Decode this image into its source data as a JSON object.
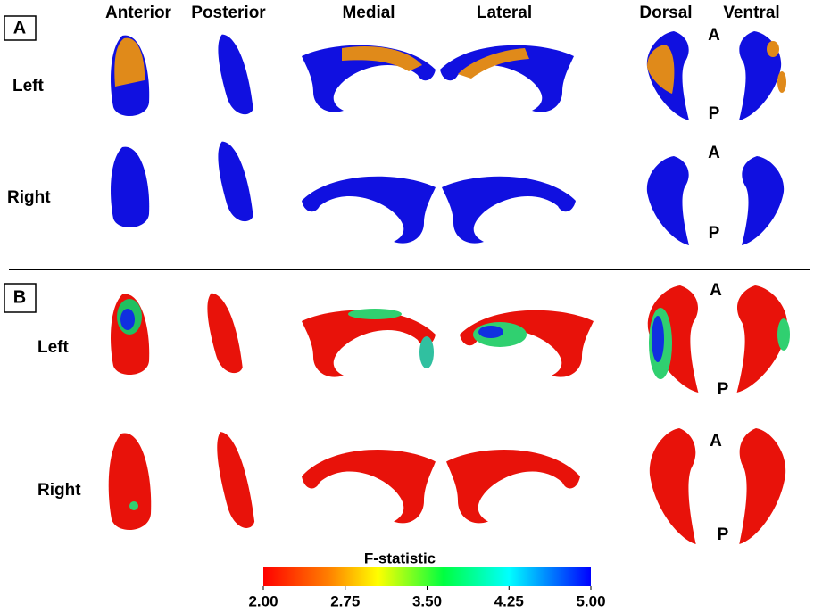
{
  "columns": [
    "Anterior",
    "Posterior",
    "Medial",
    "Lateral",
    "Dorsal",
    "Ventral"
  ],
  "panels": [
    {
      "label": "A",
      "rows": [
        "Left",
        "Right"
      ],
      "axis_labels": [
        [
          "A",
          "P"
        ],
        [
          "A",
          "P"
        ]
      ]
    },
    {
      "label": "B",
      "rows": [
        "Left",
        "Right"
      ],
      "axis_labels": [
        [
          "A",
          "P"
        ],
        [
          "A",
          "P"
        ]
      ]
    }
  ],
  "colorbar": {
    "title": "F-statistic",
    "range": [
      2,
      5
    ],
    "ticks": [
      {
        "value": 2,
        "label": "2.00"
      },
      {
        "value": 2.75,
        "label": "2.75"
      },
      {
        "value": 3.5,
        "label": "3.50"
      },
      {
        "value": 4.25,
        "label": "4.25"
      },
      {
        "value": 5,
        "label": "5.00"
      }
    ]
  }
}
